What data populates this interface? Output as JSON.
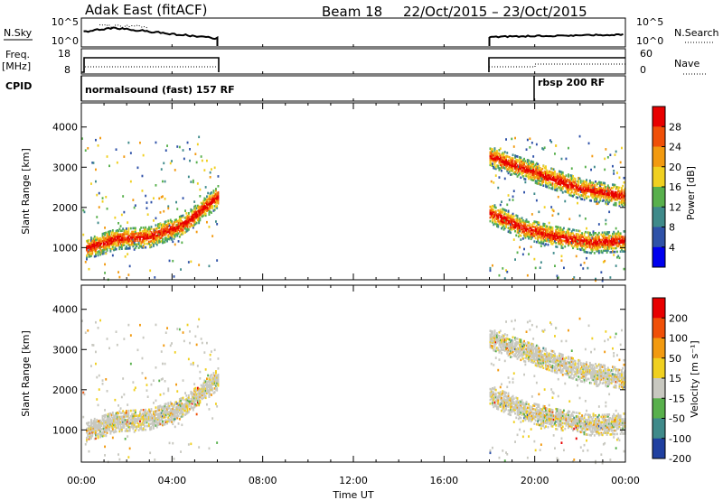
{
  "header": {
    "title": "Adak East (fitACF)",
    "beam": "Beam 18",
    "date_range": "22/Oct/2015 – 23/Oct/2015"
  },
  "panels": {
    "nsky": {
      "label": "N.Sky",
      "right_label": "N.Search",
      "left_ticks": [
        "10^5",
        "10^0"
      ],
      "right_ticks": [
        "10^5",
        "10^0"
      ]
    },
    "freq": {
      "label_line1": "Freq.",
      "label_line2": "[MHz]",
      "right_label": "Nave",
      "left_ticks": [
        "18",
        "8"
      ],
      "right_ticks": [
        "60",
        "0"
      ]
    },
    "cpid": {
      "label": "CPID",
      "modes": [
        {
          "text": "normalsound (fast) 157 RF",
          "start_hour": 0
        },
        {
          "text": "rbsp 200 RF",
          "start_hour": 20
        }
      ]
    }
  },
  "colors": {
    "power": [
      "#0000ee",
      "#2f52a8",
      "#3f8a8a",
      "#58b04c",
      "#f0d020",
      "#f29a10",
      "#f05008",
      "#e80000"
    ],
    "velocity": [
      "#e80000",
      "#f05008",
      "#f29a10",
      "#f0d020",
      "#c8c8c0",
      "#58b04c",
      "#3f8a8a",
      "#2f52a8"
    ],
    "velocity_bar": [
      "#2040a0",
      "#3f8a8a",
      "#58b04c",
      "#c8c8c0",
      "#f0d020",
      "#f29a10",
      "#f05008",
      "#e80000"
    ]
  },
  "chart_data": [
    {
      "type": "heatmap",
      "name": "power",
      "xlabel": "Time UT",
      "ylabel": "Slant Range [km]",
      "xlim": [
        0,
        24
      ],
      "ylim": [
        200,
        4600
      ],
      "x_ticks": [
        "00:00",
        "04:00",
        "08:00",
        "12:00",
        "16:00",
        "20:00",
        "00:00"
      ],
      "y_ticks": [
        1000,
        2000,
        3000,
        4000
      ],
      "colorbar": {
        "label": "Power [dB]",
        "ticks": [
          4,
          8,
          12,
          16,
          20,
          24,
          28
        ],
        "range": [
          0,
          32
        ]
      },
      "data_windows_hours": [
        [
          0,
          6
        ],
        [
          18,
          24
        ]
      ],
      "echo_bands": [
        {
          "t": [
            0.2,
            1.5,
            3.0,
            4.5,
            6.0
          ],
          "range_km": [
            1000,
            1250,
            1300,
            1600,
            2300
          ],
          "power_db": 26
        },
        {
          "t": [
            18.0,
            19.5,
            21.0,
            22.5,
            24.0
          ],
          "range_km": [
            1900,
            1500,
            1300,
            1150,
            1200
          ],
          "power_db": 26
        },
        {
          "t": [
            18.0,
            20.0,
            22.0,
            24.0
          ],
          "range_km": [
            3300,
            2900,
            2500,
            2300
          ],
          "power_db": 22
        }
      ]
    },
    {
      "type": "heatmap",
      "name": "velocity",
      "xlabel": "Time UT",
      "ylabel": "Slant Range [km]",
      "xlim": [
        0,
        24
      ],
      "ylim": [
        200,
        4600
      ],
      "x_ticks": [
        "00:00",
        "04:00",
        "08:00",
        "12:00",
        "16:00",
        "20:00",
        "00:00"
      ],
      "y_ticks": [
        1000,
        2000,
        3000,
        4000
      ],
      "colorbar": {
        "label": "Velocity [m s⁻¹]",
        "ticks": [
          200,
          100,
          50,
          15,
          -15,
          -50,
          -100,
          -200
        ]
      }
    }
  ]
}
